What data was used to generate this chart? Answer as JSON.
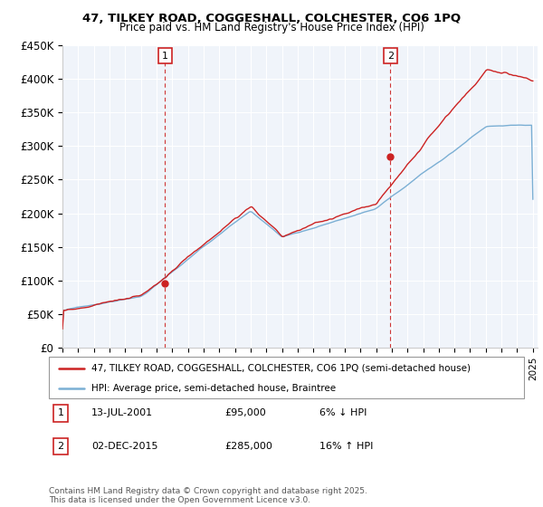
{
  "title_line1": "47, TILKEY ROAD, COGGESHALL, COLCHESTER, CO6 1PQ",
  "title_line2": "Price paid vs. HM Land Registry's House Price Index (HPI)",
  "ylim": [
    0,
    450000
  ],
  "yticks": [
    0,
    50000,
    100000,
    150000,
    200000,
    250000,
    300000,
    350000,
    400000,
    450000
  ],
  "ytick_labels": [
    "£0",
    "£50K",
    "£100K",
    "£150K",
    "£200K",
    "£250K",
    "£300K",
    "£350K",
    "£400K",
    "£450K"
  ],
  "hpi_color": "#7bafd4",
  "price_color": "#cc2222",
  "sale1_t": 2001.54,
  "sale1_y": 95000,
  "sale2_t": 2015.92,
  "sale2_y": 285000,
  "sale1_date": "13-JUL-2001",
  "sale1_price": "£95,000",
  "sale1_hpi": "6% ↓ HPI",
  "sale2_date": "02-DEC-2015",
  "sale2_price": "£285,000",
  "sale2_hpi": "16% ↑ HPI",
  "legend1": "47, TILKEY ROAD, COGGESHALL, COLCHESTER, CO6 1PQ (semi-detached house)",
  "legend2": "HPI: Average price, semi-detached house, Braintree",
  "footer": "Contains HM Land Registry data © Crown copyright and database right 2025.\nThis data is licensed under the Open Government Licence v3.0.",
  "xtick_years": [
    1995,
    1996,
    1997,
    1998,
    1999,
    2000,
    2001,
    2002,
    2003,
    2004,
    2005,
    2006,
    2007,
    2008,
    2009,
    2010,
    2011,
    2012,
    2013,
    2014,
    2015,
    2016,
    2017,
    2018,
    2019,
    2020,
    2021,
    2022,
    2023,
    2024,
    2025
  ],
  "bg_color": "#f0f4fa"
}
